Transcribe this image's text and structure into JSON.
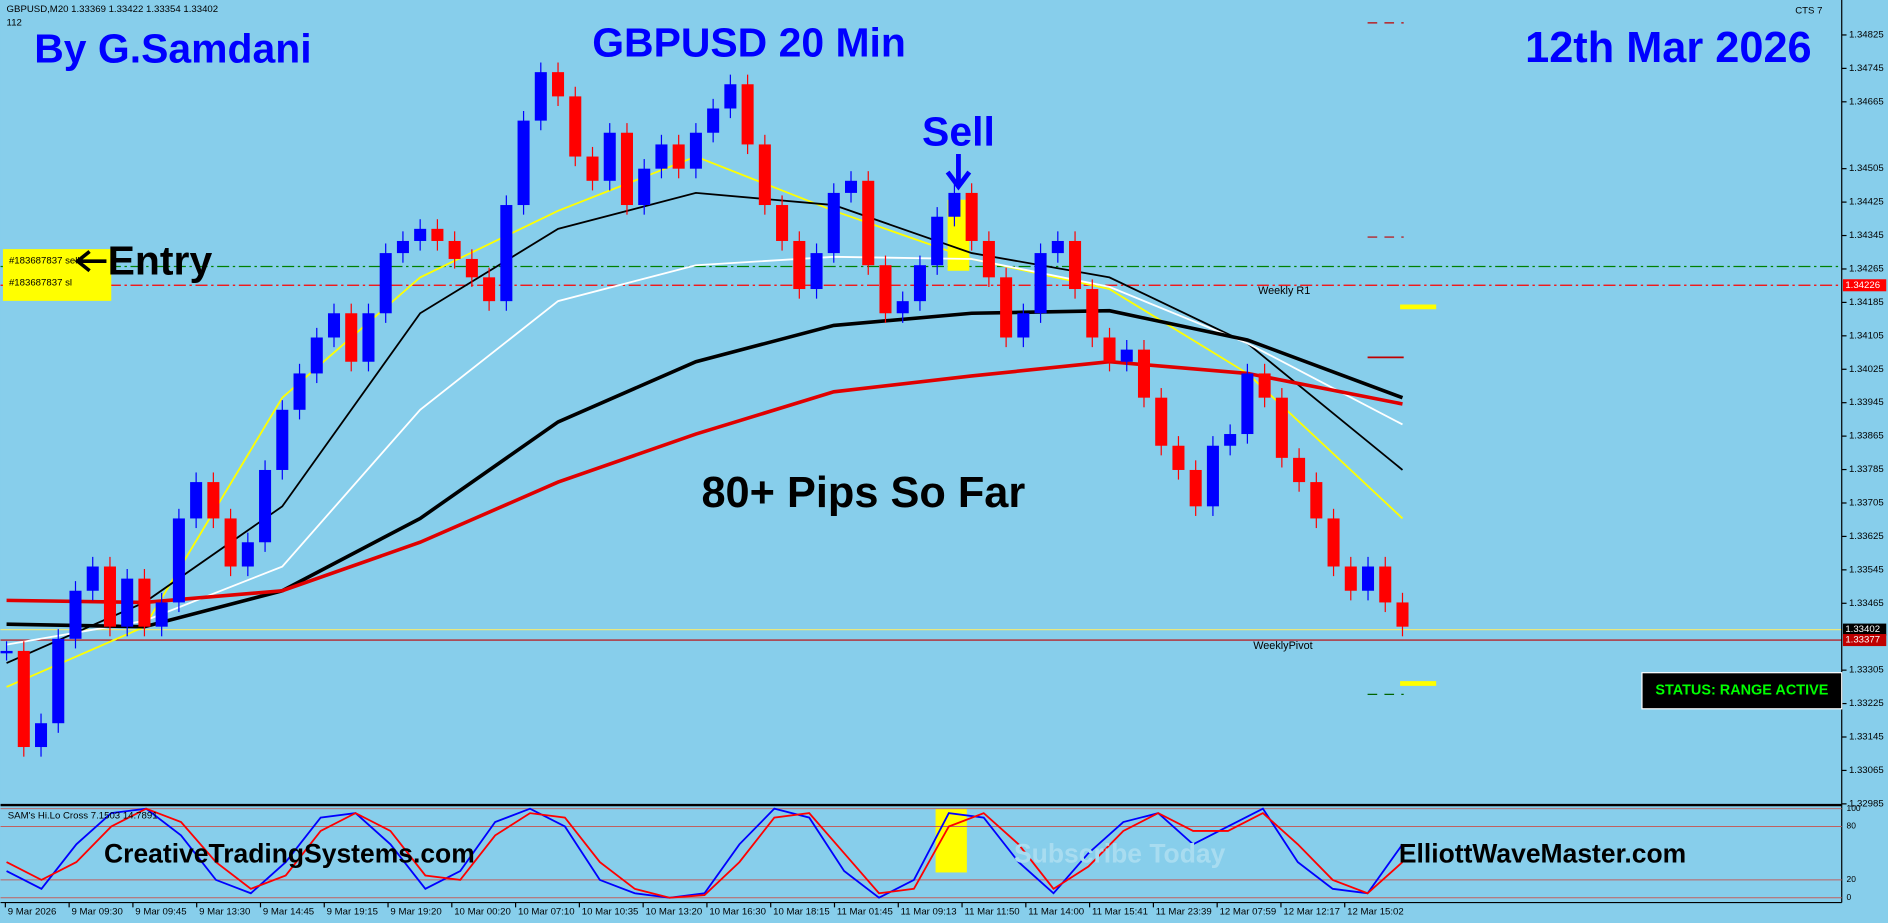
{
  "header": {
    "symbol_info": "GBPUSD,M20  1.33369 1.33422 1.33354 1.33402",
    "bar_count": "112",
    "indicator": "CTS 7"
  },
  "annotations": {
    "author": "By G.Samdani",
    "title": "GBPUSD 20 Min",
    "date": "12th Mar 2026",
    "sell": "Sell",
    "entry": "Entry",
    "pips": "80+ Pips So Far",
    "site1": "CreativeTradingSystems.com",
    "site2": "ElliottWaveMaster.com",
    "watermark": "Subscribe Today",
    "status": "STATUS: RANGE ACTIVE",
    "weekly_r1": "Weekly R1",
    "weekly_pivot": "WeeklyPivot",
    "order_sell": "#183687837 sell",
    "order_sl": "#183687837 sl"
  },
  "chart_data": {
    "type": "candlestick",
    "up_color": "#0000ff",
    "down_color": "#ff0000",
    "values": [
      1.33351,
      1.33121,
      1.33178,
      1.3338,
      1.33495,
      1.33553,
      1.33409,
      1.33524,
      1.33409,
      1.33467,
      1.33668,
      1.33755,
      1.33668,
      1.33553,
      1.33611,
      1.33784,
      1.33928,
      1.34015,
      1.34101,
      1.34159,
      1.34043,
      1.34159,
      1.34303,
      1.34332,
      1.34361,
      1.34332,
      1.34289,
      1.34245,
      1.34188,
      1.34418,
      1.3462,
      1.34736,
      1.34678,
      1.34534,
      1.34476,
      1.34591,
      1.34418,
      1.34505,
      1.34563,
      1.34505,
      1.34591,
      1.34649,
      1.34707,
      1.34563,
      1.34418,
      1.34332,
      1.34217,
      1.34303,
      1.34447,
      1.34476,
      1.34274,
      1.34159,
      1.34188,
      1.34274,
      1.3439,
      1.34447,
      1.34332,
      1.34245,
      1.34101,
      1.34159,
      1.34303,
      1.34332,
      1.34217,
      1.34101,
      1.34043,
      1.34072,
      1.33957,
      1.33842,
      1.33784,
      1.33697,
      1.33842,
      1.3387,
      1.34015,
      1.33957,
      1.33813,
      1.33755,
      1.33668,
      1.33553,
      1.33495,
      1.33553,
      1.33467,
      1.33409
    ],
    "moving_averages": [
      {
        "color": "#ffff00",
        "width": 1.5,
        "x": [
          0,
          8,
          16,
          24,
          32,
          40,
          48,
          56,
          64,
          72,
          81
        ],
        "values": [
          1.33265,
          1.33409,
          1.33957,
          1.34245,
          1.34404,
          1.34534,
          1.34404,
          1.34289,
          1.34217,
          1.34015,
          1.33668
        ]
      },
      {
        "color": "#000000",
        "width": 1.5,
        "x": [
          0,
          8,
          16,
          24,
          32,
          40,
          48,
          56,
          64,
          72,
          81
        ],
        "values": [
          1.33322,
          1.33467,
          1.33697,
          1.34159,
          1.34361,
          1.34447,
          1.34418,
          1.34303,
          1.34245,
          1.34087,
          1.33784
        ]
      },
      {
        "color": "#ffffff",
        "width": 1.5,
        "x": [
          0,
          8,
          16,
          24,
          32,
          40,
          48,
          56,
          64,
          72,
          81
        ],
        "values": [
          1.33366,
          1.33423,
          1.33553,
          1.33928,
          1.34188,
          1.34274,
          1.34294,
          1.34289,
          1.34222,
          1.34087,
          1.33893
        ]
      },
      {
        "color": "#000000",
        "width": 3,
        "x": [
          0,
          8,
          16,
          24,
          32,
          40,
          48,
          56,
          64,
          72,
          81
        ],
        "values": [
          1.33415,
          1.33409,
          1.33495,
          1.33668,
          1.33899,
          1.34043,
          1.3413,
          1.34159,
          1.34165,
          1.34095,
          1.33957
        ]
      },
      {
        "color": "#e00000",
        "width": 3,
        "x": [
          0,
          8,
          16,
          24,
          32,
          40,
          48,
          56,
          64,
          72,
          81
        ],
        "values": [
          1.33472,
          1.33467,
          1.33495,
          1.33611,
          1.33755,
          1.3387,
          1.33971,
          1.34009,
          1.34043,
          1.34015,
          1.33942
        ]
      }
    ],
    "levels": [
      {
        "value": 1.34271,
        "color": "#008000"
      },
      {
        "value": 1.34226,
        "label": "1.34226",
        "color": "#ff0000"
      },
      {
        "value": 1.33402,
        "label": "1.33402",
        "color": "#e8e880"
      },
      {
        "value": 1.33377,
        "label": "1.33377",
        "color": "#c00000"
      }
    ],
    "ylim": [
      1.32985,
      1.349
    ],
    "yticks": [
      1.32985,
      1.33065,
      1.33145,
      1.33225,
      1.33305,
      1.33465,
      1.33545,
      1.33625,
      1.33705,
      1.33785,
      1.33865,
      1.33945,
      1.34025,
      1.34105,
      1.34185,
      1.34265,
      1.34345,
      1.34425,
      1.34505,
      1.34665,
      1.34745,
      1.34825
    ],
    "xticklabels": [
      "9 Mar 2026",
      "9 Mar 09:30",
      "9 Mar 09:45",
      "9 Mar 13:30",
      "9 Mar 14:45",
      "9 Mar 19:15",
      "9 Mar 19:20",
      "10 Mar 00:20",
      "10 Mar 07:10",
      "10 Mar 10:35",
      "10 Mar 13:20",
      "10 Mar 16:30",
      "10 Mar 18:15",
      "11 Mar 01:45",
      "11 Mar 09:13",
      "11 Mar 11:50",
      "11 Mar 14:00",
      "11 Mar 15:41",
      "11 Mar 23:39",
      "12 Mar 07:59",
      "12 Mar 12:17",
      "12 Mar 15:02"
    ],
    "oscillator": {
      "title": "SAM's Hi.Lo Cross 7.1503 14.7891",
      "ylim": [
        0,
        100
      ],
      "yticks": [
        0,
        20,
        80,
        100
      ],
      "series": [
        {
          "color": "#0000ff",
          "values": [
            30,
            10,
            60,
            95,
            100,
            70,
            20,
            5,
            40,
            90,
            95,
            60,
            10,
            30,
            85,
            100,
            80,
            20,
            5,
            0,
            5,
            60,
            100,
            90,
            30,
            0,
            20,
            95,
            90,
            40,
            5,
            50,
            85,
            95,
            60,
            80,
            100,
            40,
            10,
            5,
            60
          ]
        },
        {
          "color": "#ff0000",
          "values": [
            40,
            20,
            40,
            80,
            100,
            85,
            40,
            10,
            25,
            75,
            95,
            75,
            25,
            20,
            70,
            95,
            90,
            40,
            10,
            0,
            3,
            40,
            90,
            95,
            50,
            5,
            10,
            80,
            95,
            60,
            10,
            35,
            75,
            95,
            75,
            75,
            95,
            60,
            20,
            5,
            40
          ]
        }
      ]
    }
  }
}
